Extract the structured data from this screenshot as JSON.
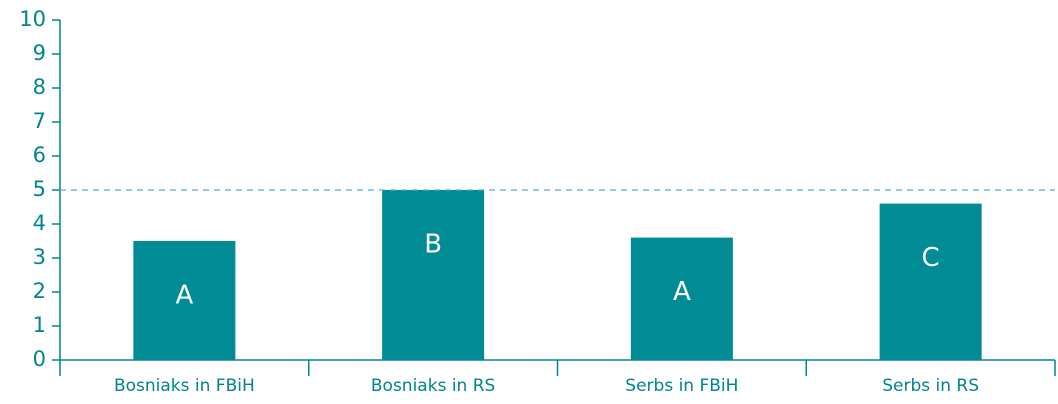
{
  "chart_data": {
    "type": "bar",
    "categories": [
      "Bosniaks in FBiH",
      "Bosniaks in RS",
      "Serbs in FBiH",
      "Serbs in RS"
    ],
    "values": [
      3.5,
      5,
      3.6,
      4.6
    ],
    "bar_labels": [
      "A",
      "B",
      "A",
      "C"
    ],
    "color": "#008b95",
    "axis_color": "#00858f",
    "reference_line": 5,
    "reference_line_color": "#5aa9d6",
    "ylim": [
      0,
      10
    ],
    "yticks": [
      0,
      1,
      2,
      3,
      4,
      5,
      6,
      7,
      8,
      9,
      10
    ],
    "grid": false
  }
}
